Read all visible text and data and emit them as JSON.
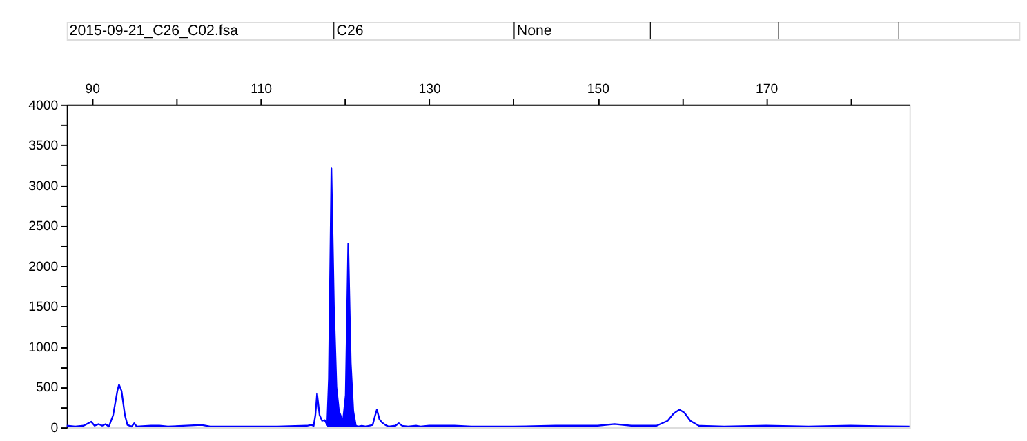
{
  "chart_data": {
    "type": "line",
    "annotations": [
      "2015-09-21_C26_C02.fsa",
      "C26",
      "None"
    ],
    "xlim": [
      87,
      187
    ],
    "xticks": [
      90,
      {
        "value": 100,
        "label": null
      },
      110,
      {
        "value": 120,
        "label": null
      },
      130,
      {
        "value": 140,
        "label": null
      },
      150,
      {
        "value": 160,
        "label": null
      },
      170,
      {
        "value": 180,
        "label": null
      }
    ],
    "ylim": [
      0,
      4000
    ],
    "yticks": [
      0,
      {
        "value": 250,
        "label": null
      },
      500,
      {
        "value": 750,
        "label": null
      },
      1000,
      {
        "value": 1250,
        "label": null
      },
      1500,
      {
        "value": 1750,
        "label": null
      },
      2000,
      {
        "value": 2250,
        "label": null
      },
      2500,
      {
        "value": 2750,
        "label": null
      },
      3000,
      {
        "value": 3250,
        "label": null
      },
      3500,
      {
        "value": 3750,
        "label": null
      },
      4000
    ],
    "grid": false,
    "marker": "none",
    "line_style": "solid",
    "series": [
      {
        "color": "#0000ff",
        "x": [
          87,
          88,
          89,
          89.9,
          90.3,
          90.8,
          91.2,
          91.6,
          92,
          92.5,
          93.0,
          93.2,
          93.5,
          93.9,
          94.2,
          94.7,
          95,
          95.3,
          97,
          98,
          99,
          103,
          104,
          108,
          112,
          115.5,
          116,
          116.3,
          116.5,
          116.7,
          117.0,
          117.3,
          117.6,
          117.9,
          118.1,
          118.4,
          118.7,
          119.0,
          119.3,
          119.6,
          119.8,
          120.1,
          120.4,
          120.7,
          121.0,
          121.3,
          121.6,
          122,
          122.5,
          123.3,
          123.6,
          123.8,
          124.1,
          124.4,
          124.8,
          125.2,
          126.0,
          126.4,
          126.8,
          127.5,
          128.5,
          129,
          130,
          133,
          135,
          140,
          145,
          150,
          152,
          154,
          157,
          158.3,
          159,
          159.7,
          160.3,
          161,
          162,
          165,
          170,
          175,
          180,
          187
        ],
        "values": [
          20,
          10,
          20,
          70,
          20,
          40,
          20,
          40,
          10,
          150,
          450,
          530,
          450,
          150,
          30,
          10,
          50,
          10,
          20,
          20,
          10,
          30,
          10,
          10,
          10,
          20,
          30,
          20,
          150,
          420,
          150,
          80,
          90,
          30,
          600,
          3210,
          1500,
          500,
          200,
          120,
          100,
          400,
          2280,
          800,
          200,
          20,
          10,
          20,
          10,
          30,
          150,
          220,
          100,
          60,
          30,
          10,
          20,
          50,
          20,
          10,
          20,
          10,
          20,
          20,
          10,
          10,
          20,
          20,
          40,
          20,
          20,
          80,
          170,
          220,
          180,
          80,
          20,
          10,
          20,
          10,
          20,
          10
        ]
      },
      {
        "type": "area",
        "color": "#0000ff",
        "x": [
          117.9,
          118.1,
          118.4,
          118.7,
          119.0,
          119.3,
          119.6,
          119.8,
          120.1,
          120.4,
          120.7,
          121.0,
          121.3
        ],
        "values": [
          30,
          600,
          3210,
          1500,
          500,
          200,
          120,
          100,
          400,
          2280,
          800,
          200,
          20
        ]
      }
    ]
  }
}
